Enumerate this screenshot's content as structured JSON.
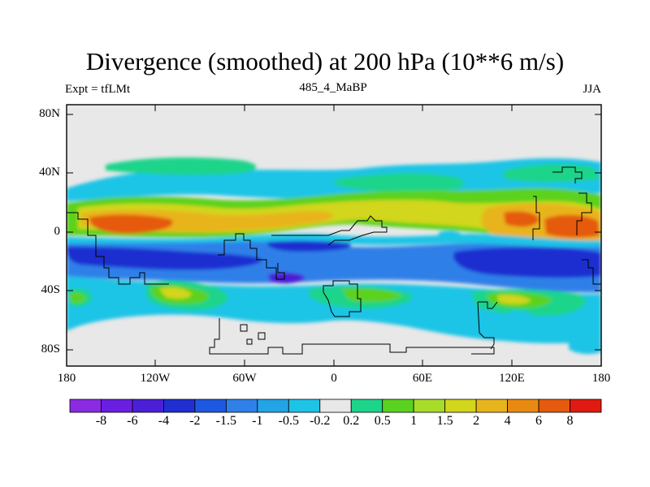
{
  "title": "Divergence (smoothed) at 200 hPa (10**6 m/s)",
  "subtitle_left": "Expt = tfLMt",
  "subtitle_center": "485_4_MaBP",
  "subtitle_right": "JJA",
  "lat_labels": [
    "80N",
    "40N",
    "0",
    "40S",
    "80S"
  ],
  "lon_labels": [
    "180",
    "120W",
    "60W",
    "0",
    "60E",
    "120E",
    "180"
  ],
  "colorbar": {
    "colors": [
      "#8a2be2",
      "#6a1fe0",
      "#4b1fd6",
      "#1f2fd0",
      "#1f58e0",
      "#2f80e8",
      "#22a4e6",
      "#1ec4e6",
      "#e8e8e8",
      "#1ed48a",
      "#5bd21f",
      "#a8dc2a",
      "#d2d61c",
      "#e8b41e",
      "#e88a12",
      "#e55a0e",
      "#e01a10"
    ],
    "labels": [
      "-8",
      "-6",
      "-4",
      "-2",
      "-1.5",
      "-1",
      "-0.5",
      "-0.2",
      "0.2",
      "0.5",
      "1",
      "1.5",
      "2",
      "4",
      "6",
      "8"
    ]
  },
  "colors": {
    "background": "#e8e8e8",
    "strong_negative": "#1f2fd0",
    "negative": "#2f80e8",
    "weak_negative": "#1ec4e6",
    "weak_positive": "#1ed48a",
    "positive": "#5bd21f",
    "mid_positive": "#d2d61c",
    "strong_positive": "#e8b41e",
    "max_positive": "#e55a0e"
  }
}
